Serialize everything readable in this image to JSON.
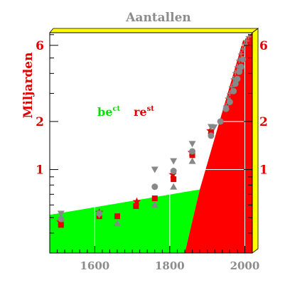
{
  "chart_data": {
    "type": "scatter",
    "title": "Aantallen",
    "ylabel": "Miljarden",
    "xlim": [
      1480,
      2020
    ],
    "ylim": [
      0.3,
      7.2
    ],
    "yscale": "log",
    "xticks": [
      "1600",
      "1800",
      "2000"
    ],
    "xtick_values": [
      1600,
      1800,
      2000
    ],
    "yticks_left": [
      "6",
      "2",
      "1"
    ],
    "yticks_right": [
      "6",
      "2",
      "1"
    ],
    "ytick_values": [
      6,
      2,
      1
    ],
    "legend": [
      {
        "base": "be",
        "sup": "ct",
        "color": "#00e000"
      },
      {
        "base": "re",
        "sup": "st",
        "color": "#e00000"
      }
    ],
    "areas": [
      {
        "color": "#00ff00",
        "points": [
          [
            1480,
            0.52
          ],
          [
            1880,
            0.75
          ],
          [
            1840,
            0.3
          ],
          [
            1480,
            0.3
          ]
        ]
      },
      {
        "color": "#ff0000",
        "points": [
          [
            1840,
            0.3
          ],
          [
            1880,
            0.75
          ],
          [
            1995,
            6.4
          ],
          [
            2020,
            7.2
          ],
          [
            2020,
            0.3
          ]
        ]
      }
    ],
    "series": [
      {
        "marker": "square",
        "color": "#e00000",
        "points": [
          [
            1510,
            0.45
          ],
          [
            1612,
            0.51
          ],
          [
            1660,
            0.51
          ],
          [
            1710,
            0.59
          ],
          [
            1760,
            0.66
          ],
          [
            1810,
            0.87
          ],
          [
            1860,
            1.23
          ],
          [
            1910,
            1.72
          ]
        ]
      },
      {
        "marker": "star",
        "color": "#e00000",
        "points": [
          [
            1508,
            0.47
          ],
          [
            1612,
            0.54
          ],
          [
            1712,
            0.63
          ],
          [
            1808,
            0.93
          ],
          [
            1858,
            1.28
          ],
          [
            1908,
            1.75
          ]
        ]
      },
      {
        "marker": "triangle-up",
        "color": "#888888",
        "points": [
          [
            1510,
            0.5
          ],
          [
            1660,
            0.46
          ],
          [
            1760,
            0.6
          ],
          [
            1810,
            0.78
          ],
          [
            1860,
            1.13
          ]
        ]
      },
      {
        "marker": "triangle-down",
        "color": "#888888",
        "points": [
          [
            1510,
            0.53
          ],
          [
            1612,
            0.52
          ],
          [
            1760,
            1.0
          ],
          [
            1810,
            1.13
          ],
          [
            1860,
            1.45
          ],
          [
            1910,
            1.85
          ],
          [
            1918,
            1.84
          ]
        ]
      },
      {
        "marker": "circle",
        "color": "#888888",
        "points": [
          [
            1510,
            0.49
          ],
          [
            1612,
            0.53
          ],
          [
            1760,
            0.78
          ],
          [
            1810,
            0.98
          ],
          [
            1860,
            1.3
          ],
          [
            1910,
            1.63
          ],
          [
            1935,
            2.0
          ],
          [
            1950,
            2.4
          ],
          [
            1960,
            2.65
          ],
          [
            1970,
            3.1
          ],
          [
            1975,
            3.45
          ],
          [
            1980,
            3.7
          ],
          [
            1985,
            4.1
          ],
          [
            1990,
            4.4
          ],
          [
            1995,
            4.9
          ]
        ]
      },
      {
        "marker": "plus",
        "color": "#888888",
        "points": [
          [
            1950,
            2.5
          ],
          [
            1955,
            2.8
          ],
          [
            1960,
            3.0
          ],
          [
            1965,
            3.3
          ],
          [
            1970,
            3.7
          ],
          [
            1975,
            4.05
          ],
          [
            1980,
            4.4
          ],
          [
            1985,
            4.85
          ],
          [
            1990,
            5.3
          ],
          [
            1995,
            5.7
          ],
          [
            2000,
            6.1
          ],
          [
            2005,
            6.4
          ],
          [
            2010,
            6.8
          ]
        ]
      }
    ]
  }
}
